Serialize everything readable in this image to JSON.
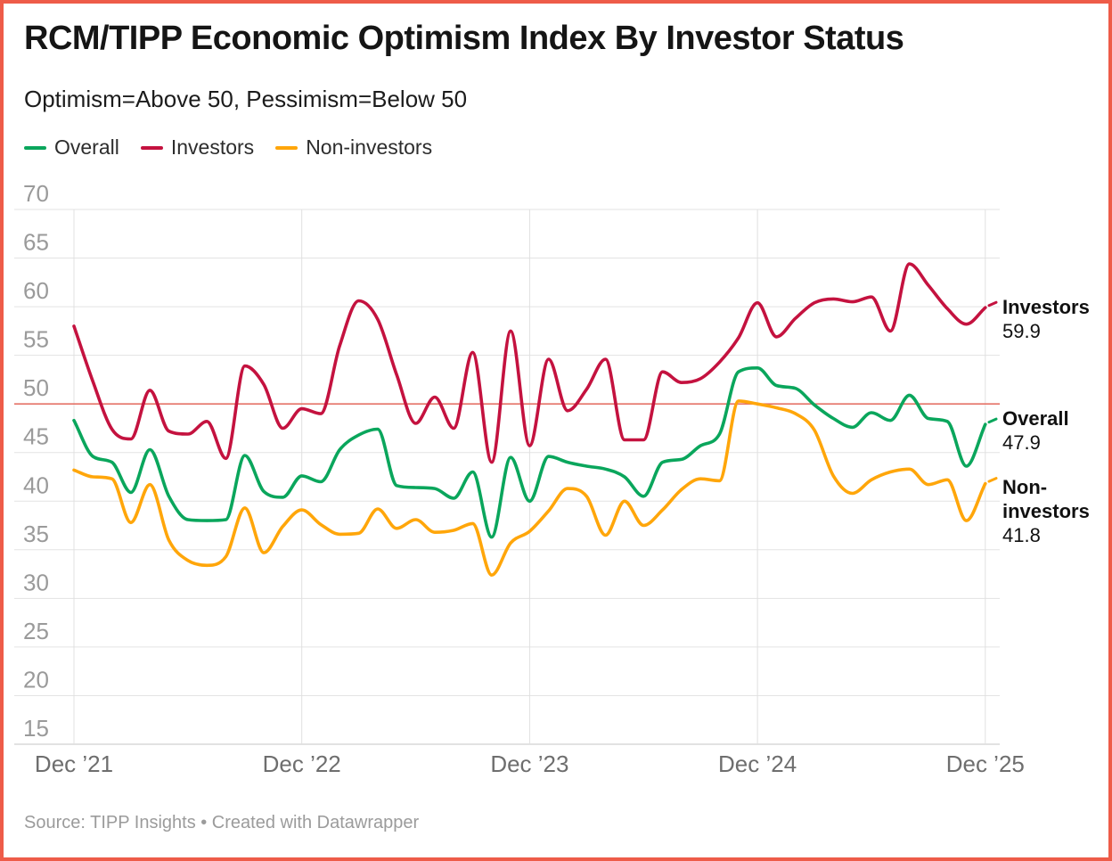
{
  "frame": {
    "border_color": "#ee5c49",
    "background": "#ffffff"
  },
  "header": {
    "title": "RCM/TIPP Economic Optimism Index By Investor Status",
    "subtitle": "Optimism=Above 50, Pessimism=Below 50"
  },
  "legend": {
    "items": [
      {
        "label": "Overall",
        "color": "#0aa65c"
      },
      {
        "label": "Investors",
        "color": "#c4123f"
      },
      {
        "label": "Non-investors",
        "color": "#ffa60a"
      }
    ]
  },
  "end_labels": {
    "investors": {
      "name": "Investors",
      "value": "59.9"
    },
    "overall": {
      "name": "Overall",
      "value": "47.9"
    },
    "non_investors": {
      "name": "Non-investors",
      "value": "41.8"
    }
  },
  "footer": {
    "source": "Source: TIPP Insights • Created with Datawrapper"
  },
  "chart_data": {
    "type": "line",
    "title": "RCM/TIPP Economic Optimism Index By Investor Status",
    "subtitle": "Optimism=Above 50, Pessimism=Below 50",
    "x_start": "Dec 2021",
    "x_end": "Dec 2025",
    "frequency": "monthly",
    "x_tick_labels": [
      "Dec ’21",
      "Dec ’22",
      "Dec ’23",
      "Dec ’24",
      "Dec ’25"
    ],
    "months_per_tick": 12,
    "y_ticks": [
      15,
      20,
      25,
      30,
      35,
      40,
      45,
      50,
      55,
      60,
      65,
      70
    ],
    "ylim": [
      15,
      70
    ],
    "grid": true,
    "legend_position": "top-left",
    "reference_line": {
      "value": 50,
      "color": "#e57368"
    },
    "series": [
      {
        "name": "Overall",
        "color": "#0aa65c",
        "end_value": "47.9",
        "values": [
          48.3,
          44.6,
          44.0,
          40.9,
          45.3,
          40.5,
          38.1,
          38.0,
          38.1,
          44.7,
          41.0,
          40.4,
          42.6,
          42.0,
          45.3,
          46.8,
          47.4,
          41.6,
          41.4,
          41.3,
          40.3,
          43.0,
          36.3,
          44.5,
          40.0,
          44.6,
          44.0,
          43.6,
          43.3,
          42.5,
          40.5,
          44.0,
          44.3,
          45.7,
          46.9,
          53.3,
          53.7,
          51.9,
          51.6,
          49.9,
          48.5,
          47.6,
          49.1,
          48.3,
          50.9,
          48.5,
          48.2,
          43.6,
          47.9
        ]
      },
      {
        "name": "Investors",
        "color": "#c4123f",
        "end_value": "59.9",
        "values": [
          58.0,
          52.3,
          47.4,
          46.4,
          51.4,
          47.2,
          46.9,
          48.2,
          44.4,
          53.9,
          52.0,
          47.5,
          49.5,
          49.0,
          56.0,
          60.6,
          58.7,
          53.0,
          48.0,
          50.7,
          47.5,
          55.3,
          44.0,
          57.5,
          45.7,
          54.6,
          49.3,
          51.5,
          54.6,
          46.3,
          46.3,
          53.3,
          52.2,
          52.6,
          54.3,
          56.8,
          60.4,
          56.9,
          58.8,
          60.4,
          60.8,
          60.5,
          61.0,
          57.5,
          64.4,
          62.2,
          59.8,
          58.2,
          59.9
        ]
      },
      {
        "name": "Non-investors",
        "color": "#ffa60a",
        "end_value": "41.8",
        "values": [
          43.2,
          42.5,
          42.3,
          37.8,
          41.7,
          36.0,
          33.9,
          33.4,
          34.3,
          39.3,
          34.7,
          37.4,
          39.1,
          37.6,
          36.6,
          36.7,
          39.2,
          37.2,
          38.1,
          36.8,
          37.0,
          37.7,
          32.4,
          35.7,
          36.9,
          39.0,
          41.3,
          40.5,
          36.5,
          40.0,
          37.5,
          39.1,
          41.2,
          42.3,
          42.1,
          50.3,
          50.0,
          49.6,
          49.0,
          47.3,
          42.6,
          40.8,
          42.2,
          43.0,
          43.3,
          41.7,
          42.2,
          38.0,
          41.8
        ]
      }
    ]
  }
}
